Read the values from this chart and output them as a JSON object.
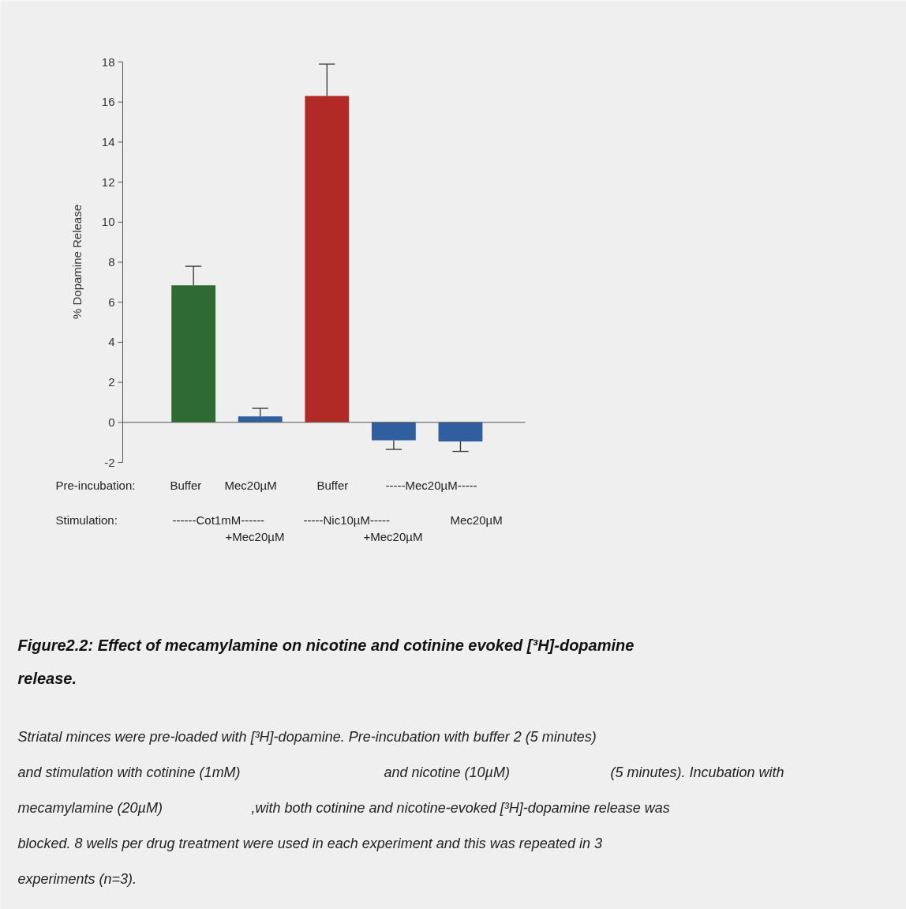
{
  "chart_data": {
    "type": "bar",
    "title": "Figure2.2: Effect of mecamylamine on nicotine and cotinine evoked [³H]-dopamine release.",
    "ylabel": "% Dopamine Release",
    "categories": [
      null,
      null,
      null,
      null,
      null
    ],
    "values": [
      6.85,
      0.3,
      16.3,
      -0.9,
      -0.95
    ],
    "colors": [
      "#2e6b32",
      "#2f5f9e",
      "#b22a26",
      "#2f5f9e",
      "#2f5f9e"
    ],
    "errors": [
      [
        6.85,
        7.8
      ],
      [
        0.3,
        0.7
      ],
      [
        16.3,
        17.9
      ],
      [
        -1.35,
        -0.9
      ],
      [
        -1.45,
        -0.95
      ]
    ],
    "ylim": [
      -2,
      18
    ],
    "yticks": [
      -2,
      0,
      2,
      4,
      6,
      8,
      10,
      12,
      14,
      16,
      18
    ],
    "tick_labels": "y",
    "annotations": [
      "Pre-incubation:",
      "Buffer",
      "Mec20µM",
      "Buffer",
      "-----Mec20µM-----",
      "Stimulation:",
      "------Cot1mM------",
      "+Mec20µM",
      "-----Nic10µM-----",
      "+Mec20µM",
      "Mec20µM",
      "Striatal minces were pre-loaded with [³H]-dopamine.  Pre-incubation with buffer 2 (5 minutes)",
      "and stimulation with cotinine (1mM)",
      "and nicotine (10µM)",
      "(5 minutes). Incubation with",
      "mecamylamine (20µM)",
      ",with both cotinine and nicotine-evoked [³H]-dopamine release was",
      "blocked.  8 wells per drug treatment were used in each experiment and this was repeated in 3",
      "experiments (n=3)."
    ]
  }
}
